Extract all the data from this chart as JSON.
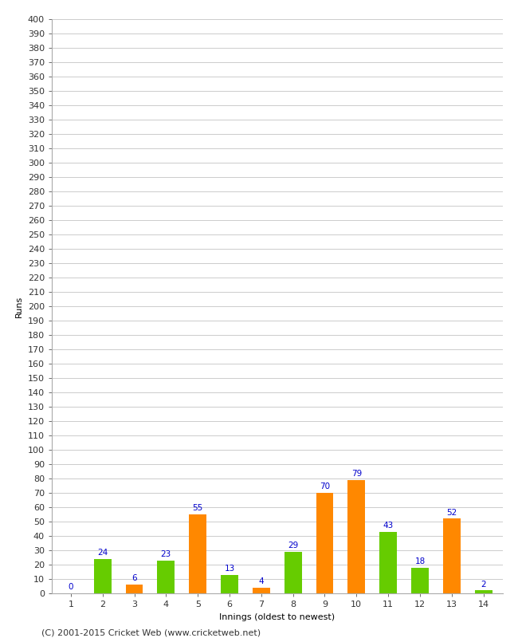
{
  "title": "",
  "xlabel": "Innings (oldest to newest)",
  "ylabel": "Runs",
  "categories": [
    1,
    2,
    3,
    4,
    5,
    6,
    7,
    8,
    9,
    10,
    11,
    12,
    13,
    14
  ],
  "values": [
    0,
    24,
    6,
    23,
    55,
    13,
    4,
    29,
    70,
    79,
    43,
    18,
    52,
    2
  ],
  "bar_colors": [
    "#ff8800",
    "#66cc00",
    "#ff8800",
    "#66cc00",
    "#ff8800",
    "#66cc00",
    "#ff8800",
    "#66cc00",
    "#ff8800",
    "#ff8800",
    "#66cc00",
    "#66cc00",
    "#ff8800",
    "#66cc00"
  ],
  "ylim": [
    0,
    400
  ],
  "yticks": [
    0,
    10,
    20,
    30,
    40,
    50,
    60,
    70,
    80,
    90,
    100,
    110,
    120,
    130,
    140,
    150,
    160,
    170,
    180,
    190,
    200,
    210,
    220,
    230,
    240,
    250,
    260,
    270,
    280,
    290,
    300,
    310,
    320,
    330,
    340,
    350,
    360,
    370,
    380,
    390,
    400
  ],
  "label_color": "#0000cc",
  "background_color": "#ffffff",
  "grid_color": "#cccccc",
  "footer": "(C) 2001-2015 Cricket Web (www.cricketweb.net)",
  "axis_fontsize": 8,
  "label_fontsize": 7.5,
  "footer_fontsize": 8,
  "bar_width": 0.55
}
